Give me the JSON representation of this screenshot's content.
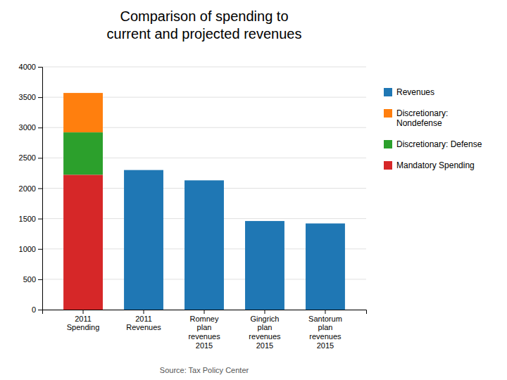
{
  "chart_data": {
    "type": "bar",
    "title": "Comparison of spending to\ncurrent and projected revenues",
    "categories": [
      "2011\nSpending",
      "2011\nRevenues",
      "Romney\nplan\nrevenues\n2015",
      "Gingrich\nplan\nrevenues\n2015",
      "Santorum\nplan\nrevenues\n2015"
    ],
    "series": [
      {
        "name": "Revenues",
        "values": [
          0,
          2300,
          2130,
          1460,
          1420
        ]
      },
      {
        "name": "Discretionary:\nNondefense",
        "values": [
          650,
          0,
          0,
          0,
          0
        ]
      },
      {
        "name": "Discretionary:  Defense",
        "values": [
          700,
          0,
          0,
          0,
          0
        ]
      },
      {
        "name": "Mandatory Spending",
        "values": [
          2220,
          0,
          0,
          0,
          0
        ]
      }
    ],
    "stacked": true,
    "ylim": [
      0,
      4000
    ],
    "yticks": [
      0,
      500,
      1000,
      1500,
      2000,
      2500,
      3000,
      3500,
      4000
    ],
    "grid": true,
    "legend": "right",
    "annotations": [
      "Source: Tax Policy Center"
    ]
  }
}
